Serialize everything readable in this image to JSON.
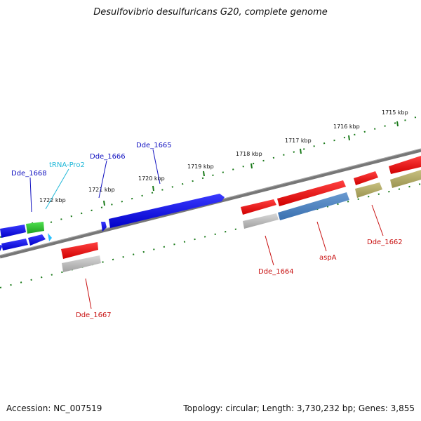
{
  "title": "Desulfovibrio desulfuricans G20, complete genome",
  "footer": {
    "accession": "Accession: NC_007519",
    "summary": "Topology: circular; Length: 3,730,232 bp; Genes: 3,855"
  },
  "ticks": [
    "1722 kbp",
    "1721 kbp",
    "1720 kbp",
    "1719 kbp",
    "1718 kbp",
    "1717 kbp",
    "1716 kbp",
    "1715 kbp"
  ],
  "genes": {
    "dde1668": "Dde_1668",
    "trnaPro2": "tRNA-Pro2",
    "dde1666": "Dde_1666",
    "dde1665": "Dde_1665",
    "dde1667": "Dde_1667",
    "dde1664": "Dde_1664",
    "aspA": "aspA",
    "dde1662": "Dde_1662"
  },
  "colors": {
    "forward_cds": "#1515e6",
    "reverse_cds": "#e61414",
    "trna": "#28c8e6",
    "tick": "#1a7a1a",
    "backbone": "#777777",
    "label_forward": "#1010c0",
    "label_reverse": "#c81010",
    "label_trna": "#20b8d8"
  }
}
